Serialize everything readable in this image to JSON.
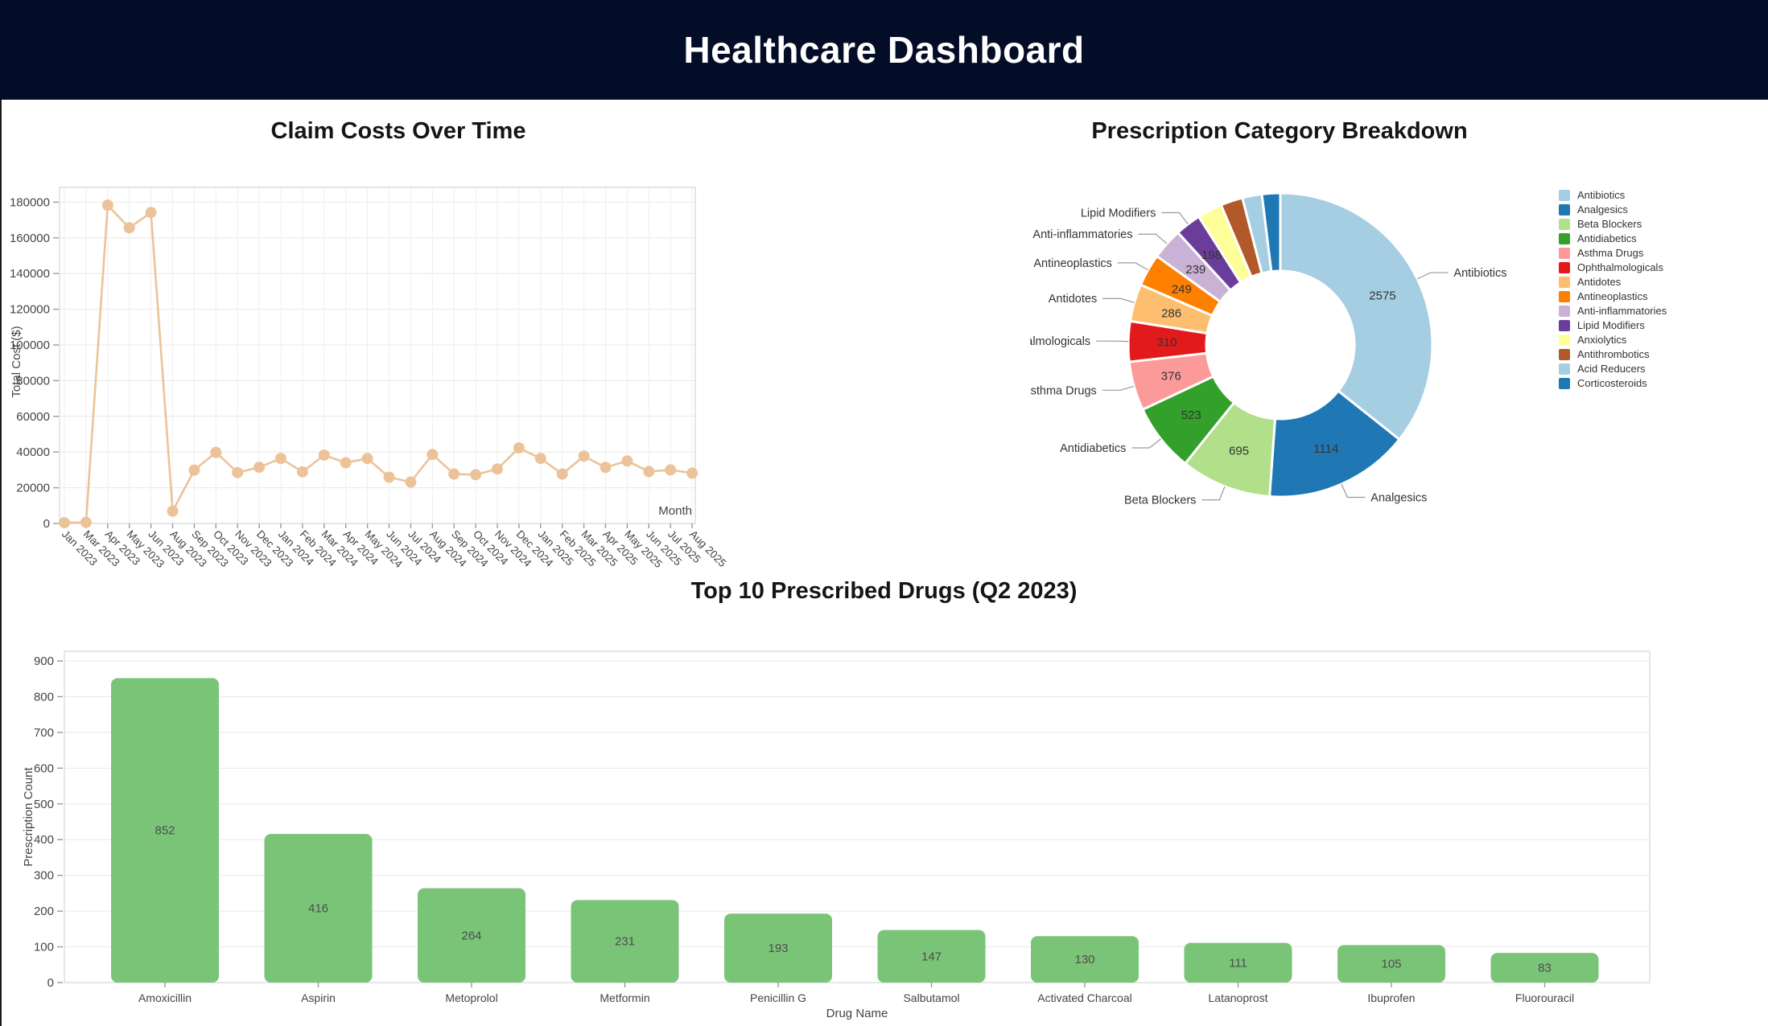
{
  "header": {
    "title": "Healthcare Dashboard",
    "bg_color": "#040d27",
    "text_color": "#ffffff"
  },
  "chart_data": [
    {
      "id": "claim-costs",
      "type": "line",
      "title": "Claim Costs Over Time",
      "xlabel": "Month",
      "ylabel": "Total Cost ($)",
      "x": [
        "Jan 2023",
        "Mar 2023",
        "Apr 2023",
        "May 2023",
        "Jun 2023",
        "Aug 2023",
        "Sep 2023",
        "Oct 2023",
        "Nov 2023",
        "Dec 2023",
        "Jan 2024",
        "Feb 2024",
        "Mar 2024",
        "Apr 2024",
        "May 2024",
        "Jun 2024",
        "Jul 2024",
        "Aug 2024",
        "Sep 2024",
        "Oct 2024",
        "Nov 2024",
        "Dec 2024",
        "Jan 2025",
        "Feb 2025",
        "Mar 2025",
        "Apr 2025",
        "May 2025",
        "Jun 2025",
        "Jul 2025",
        "Aug 2025"
      ],
      "values": [
        400,
        600,
        178300,
        165600,
        174200,
        6900,
        29900,
        39800,
        28500,
        31500,
        36400,
        28900,
        38300,
        34000,
        36400,
        25900,
        23200,
        38600,
        27700,
        27300,
        30500,
        42300,
        36400,
        27700,
        37700,
        31400,
        35000,
        29100,
        30000,
        28200
      ],
      "ylim": [
        0,
        180000
      ],
      "y_ticks": [
        0,
        20000,
        40000,
        60000,
        80000,
        100000,
        120000,
        140000,
        160000,
        180000
      ],
      "grid": true,
      "line_color": "#ecc399",
      "marker_color": "#ecc399"
    },
    {
      "id": "prescription-breakdown",
      "type": "pie",
      "title": "Prescription Category Breakdown",
      "legend_position": "right",
      "donut": true,
      "slices": [
        {
          "name": "Antibiotics",
          "value": 2575,
          "color": "#a6cee3",
          "show_label": true
        },
        {
          "name": "Analgesics",
          "value": 1114,
          "color": "#1f78b4",
          "show_label": true
        },
        {
          "name": "Beta Blockers",
          "value": 695,
          "color": "#b2df8a",
          "show_label": true
        },
        {
          "name": "Antidiabetics",
          "value": 523,
          "color": "#33a02c",
          "show_label": true
        },
        {
          "name": "Asthma Drugs",
          "value": 376,
          "color": "#fb9a99",
          "show_label": true
        },
        {
          "name": "Ophthalmologicals",
          "value": 310,
          "color": "#e31a1c",
          "show_label": true
        },
        {
          "name": "Antidotes",
          "value": 286,
          "color": "#fdbf6f",
          "show_label": true
        },
        {
          "name": "Antineoplastics",
          "value": 249,
          "color": "#ff7f00",
          "show_label": true
        },
        {
          "name": "Anti-inflammatories",
          "value": 239,
          "color": "#cab2d6",
          "show_label": true
        },
        {
          "name": "Lipid Modifiers",
          "value": 198,
          "color": "#6a3d9a",
          "show_label": true
        },
        {
          "name": "Anxiolytics",
          "value": 190,
          "color": "#ffff99",
          "show_label": false
        },
        {
          "name": "Antithrombotics",
          "value": 170,
          "color": "#b15928",
          "show_label": false
        },
        {
          "name": "Acid Reducers",
          "value": 150,
          "color": "#a6cee3",
          "show_label": false
        },
        {
          "name": "Corticosteroids",
          "value": 140,
          "color": "#1f78b4",
          "show_label": false
        }
      ]
    },
    {
      "id": "top-drugs",
      "type": "bar",
      "title": "Top 10 Prescribed Drugs (Q2 2023)",
      "xlabel": "Drug Name",
      "ylabel": "Prescription Count",
      "categories": [
        "Amoxicillin",
        "Aspirin",
        "Metoprolol",
        "Metformin",
        "Penicillin G",
        "Salbutamol",
        "Activated Charcoal",
        "Latanoprost",
        "Ibuprofen",
        "Fluorouracil"
      ],
      "values": [
        852,
        416,
        264,
        231,
        193,
        147,
        130,
        111,
        105,
        83
      ],
      "ylim": [
        0,
        900
      ],
      "y_ticks": [
        0,
        100,
        200,
        300,
        400,
        500,
        600,
        700,
        800,
        900
      ],
      "grid": true,
      "bar_color": "#7ac478"
    }
  ]
}
